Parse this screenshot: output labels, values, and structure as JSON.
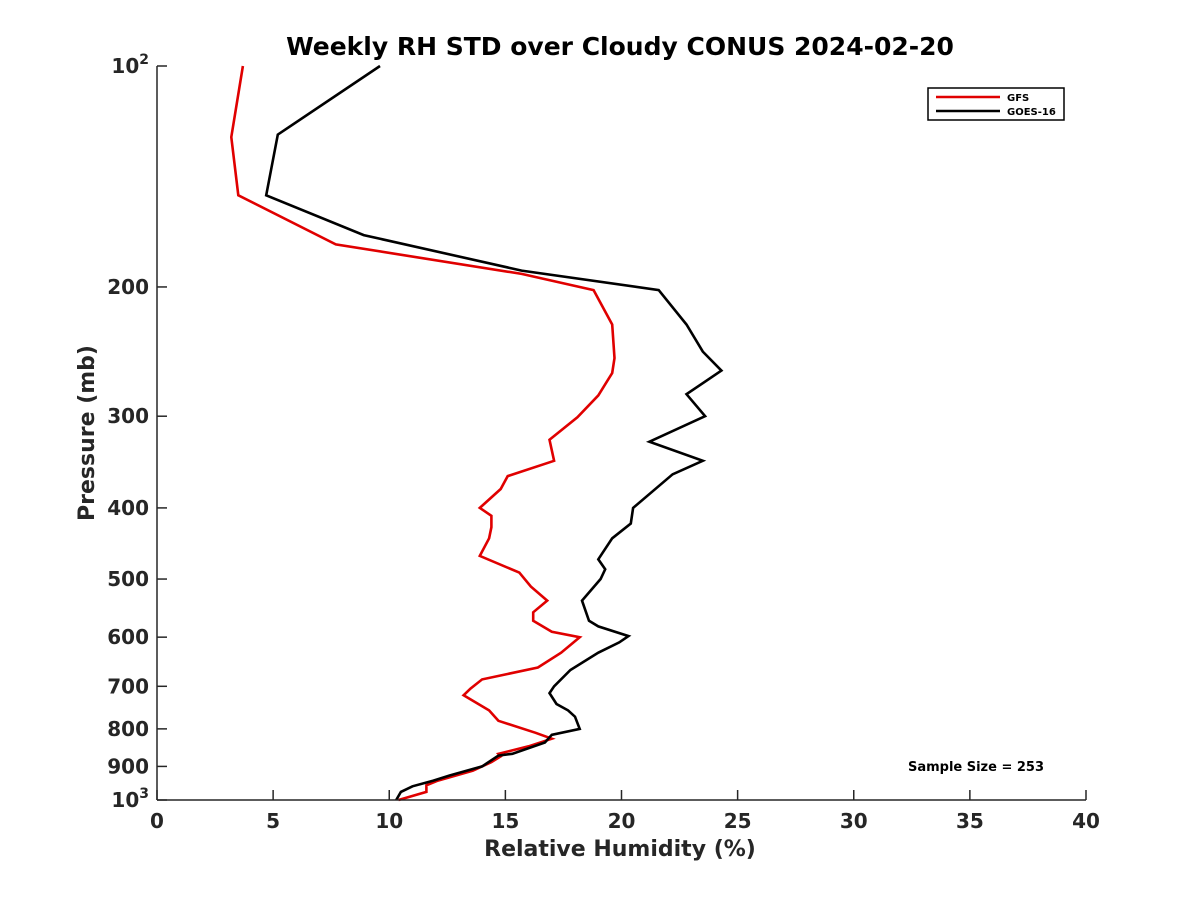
{
  "chart_data": {
    "type": "line",
    "title": "Weekly RH STD over Cloudy CONUS 2024-02-20",
    "xlabel": "Relative Humidity (%)",
    "ylabel": "Pressure (mb)",
    "xlim": [
      0,
      40
    ],
    "ylim": [
      100,
      1000
    ],
    "y_scale": "log",
    "y_reversed": true,
    "grid": false,
    "legend_position": "top-right",
    "x_ticks": [
      0,
      5,
      10,
      15,
      20,
      25,
      30,
      35,
      40
    ],
    "y_ticks": [
      {
        "value": 100,
        "base": "10",
        "exp": "2"
      },
      {
        "value": 200,
        "label": "200"
      },
      {
        "value": 300,
        "label": "300"
      },
      {
        "value": 400,
        "label": "400"
      },
      {
        "value": 500,
        "label": "500"
      },
      {
        "value": 600,
        "label": "600"
      },
      {
        "value": 700,
        "label": "700"
      },
      {
        "value": 800,
        "label": "800"
      },
      {
        "value": 900,
        "label": "900"
      },
      {
        "value": 1000,
        "base": "10",
        "exp": "3"
      }
    ],
    "annotation": "Sample Size = 253",
    "series": [
      {
        "name": "GFS",
        "color": "#e00000",
        "points": [
          [
            3.7,
            100
          ],
          [
            3.2,
            125
          ],
          [
            3.5,
            150
          ],
          [
            7.7,
            175
          ],
          [
            15.7,
            192
          ],
          [
            18.8,
            202
          ],
          [
            19.6,
            225
          ],
          [
            19.7,
            250
          ],
          [
            19.6,
            262
          ],
          [
            19.0,
            281
          ],
          [
            18.1,
            301
          ],
          [
            16.9,
            323
          ],
          [
            17.1,
            345
          ],
          [
            15.1,
            362
          ],
          [
            14.8,
            377
          ],
          [
            13.9,
            400
          ],
          [
            14.4,
            410
          ],
          [
            14.4,
            425
          ],
          [
            14.3,
            440
          ],
          [
            13.9,
            465
          ],
          [
            15.6,
            490
          ],
          [
            16.1,
            512
          ],
          [
            16.8,
            535
          ],
          [
            16.2,
            555
          ],
          [
            16.2,
            570
          ],
          [
            17.0,
            590
          ],
          [
            18.2,
            600
          ],
          [
            17.4,
            630
          ],
          [
            16.4,
            660
          ],
          [
            14.0,
            685
          ],
          [
            13.5,
            705
          ],
          [
            13.2,
            720
          ],
          [
            14.3,
            755
          ],
          [
            14.7,
            780
          ],
          [
            16.3,
            810
          ],
          [
            17.0,
            825
          ],
          [
            16.0,
            845
          ],
          [
            14.7,
            865
          ],
          [
            14.8,
            872
          ],
          [
            14.4,
            888
          ],
          [
            13.6,
            912
          ],
          [
            12.1,
            941
          ],
          [
            11.6,
            955
          ],
          [
            11.6,
            975
          ],
          [
            10.4,
            1000
          ]
        ]
      },
      {
        "name": "GOES-16",
        "color": "#000000",
        "points": [
          [
            9.6,
            100
          ],
          [
            5.2,
            124
          ],
          [
            4.7,
            150
          ],
          [
            8.9,
            170
          ],
          [
            15.7,
            190
          ],
          [
            21.6,
            202
          ],
          [
            22.8,
            225
          ],
          [
            23.5,
            245
          ],
          [
            24.3,
            260
          ],
          [
            22.8,
            280
          ],
          [
            23.6,
            300
          ],
          [
            21.2,
            325
          ],
          [
            23.5,
            345
          ],
          [
            22.2,
            360
          ],
          [
            20.5,
            400
          ],
          [
            20.4,
            420
          ],
          [
            19.6,
            440
          ],
          [
            19.0,
            470
          ],
          [
            19.3,
            485
          ],
          [
            19.1,
            500
          ],
          [
            18.3,
            535
          ],
          [
            18.6,
            570
          ],
          [
            19.0,
            580
          ],
          [
            20.3,
            598
          ],
          [
            19.9,
            610
          ],
          [
            19.0,
            630
          ],
          [
            17.8,
            665
          ],
          [
            17.1,
            700
          ],
          [
            16.9,
            715
          ],
          [
            17.2,
            740
          ],
          [
            17.7,
            755
          ],
          [
            18.0,
            770
          ],
          [
            18.2,
            800
          ],
          [
            17.0,
            815
          ],
          [
            16.7,
            835
          ],
          [
            15.3,
            865
          ],
          [
            14.7,
            870
          ],
          [
            14.0,
            900
          ],
          [
            12.6,
            926
          ],
          [
            11.9,
            941
          ],
          [
            11.0,
            958
          ],
          [
            10.5,
            975
          ],
          [
            10.3,
            1000
          ]
        ]
      }
    ]
  }
}
